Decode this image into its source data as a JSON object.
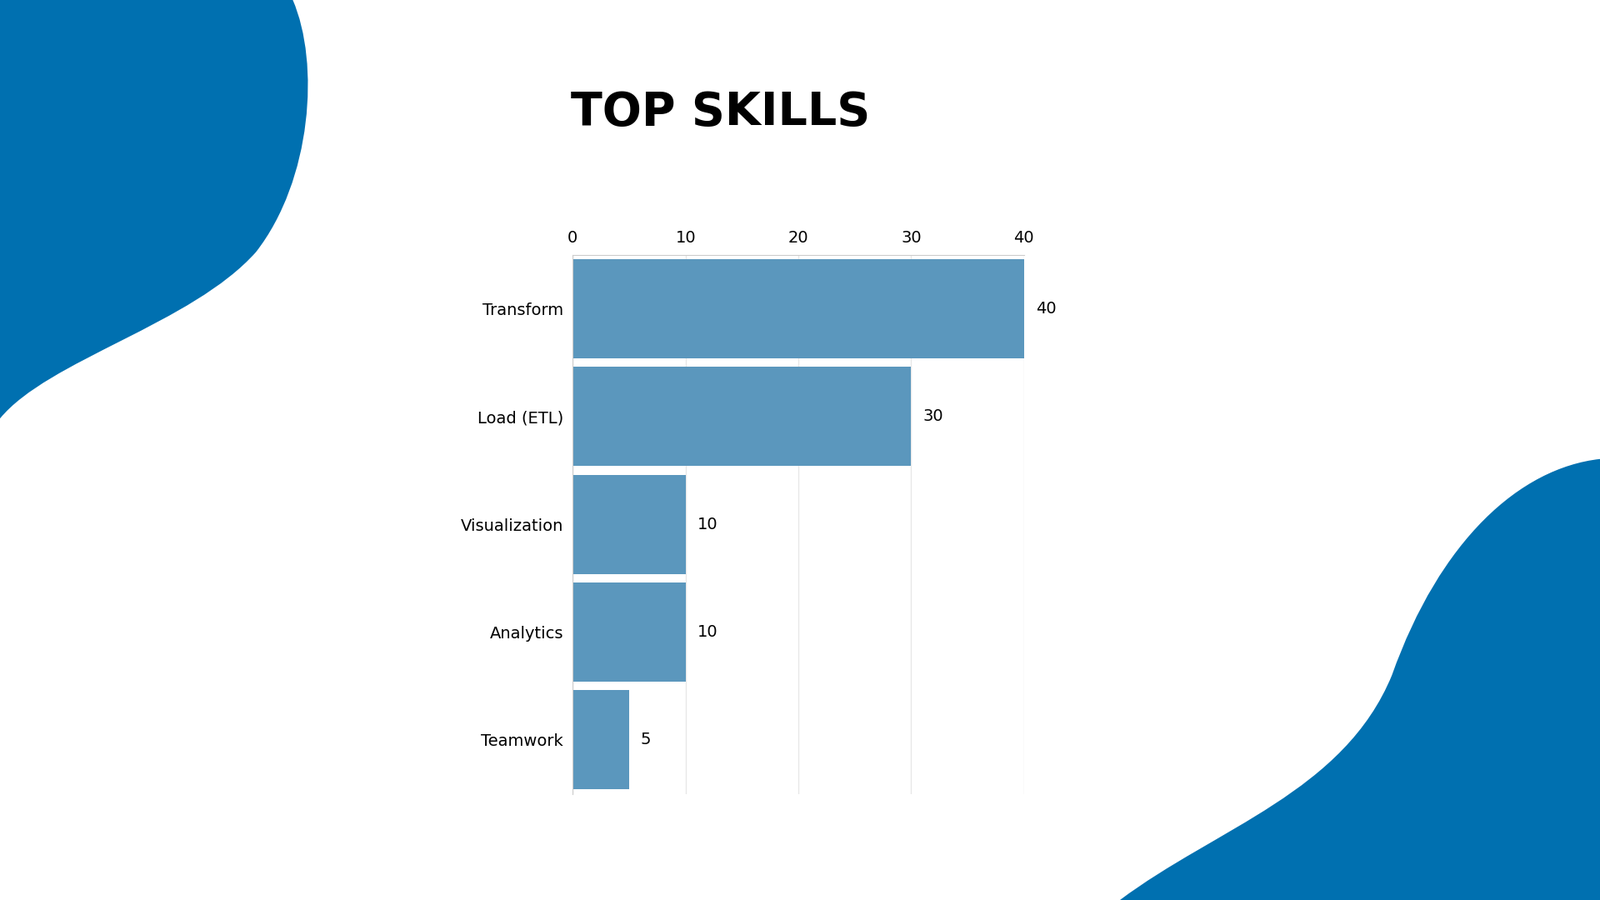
{
  "chart_data": {
    "type": "bar",
    "title": "TOP SKILLS",
    "orientation": "horizontal",
    "categories": [
      "Transform",
      "Load (ETL)",
      "Visualization",
      "Analytics",
      "Teamwork"
    ],
    "values": [
      40,
      30,
      10,
      10,
      5
    ],
    "color": "#5b97bd",
    "xlim": [
      0,
      40
    ],
    "xticks": [
      0,
      10,
      20,
      30,
      40
    ],
    "grid": true,
    "data_labels": true
  }
}
